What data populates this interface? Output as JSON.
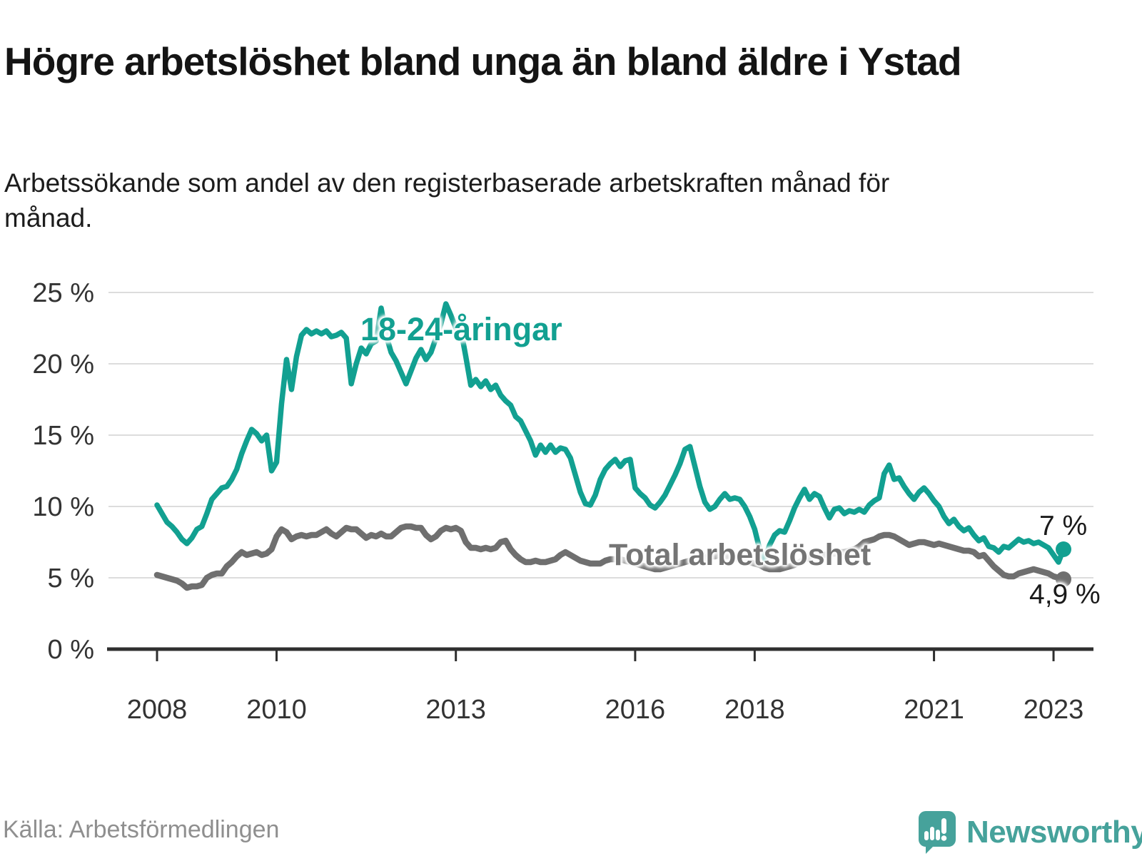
{
  "header": {
    "title": "Högre arbetslöshet bland unga än bland äldre i Ystad",
    "subtitle": "Arbetssökande som andel av den registerbaserade arbetskraften månad för månad."
  },
  "footer": {
    "source": "Källa: Arbetsförmedlingen",
    "brand": "Newsworthy"
  },
  "colors": {
    "young": "#12A091",
    "total": "#6F6F6F",
    "grid": "#DCDCDC",
    "axis": "#2F2F2F",
    "tick_text": "#333333",
    "end_label": "#1a1a1a",
    "brand_teal": "#46A29B"
  },
  "chart_data": {
    "type": "line",
    "title": "Högre arbetslöshet bland unga än bland äldre i Ystad",
    "subtitle": "Arbetssökande som andel av den registerbaserade arbetskraften månad för månad.",
    "unit": "%",
    "x_start": "2008-01",
    "x_end": "2023-03",
    "frequency": "monthly",
    "ylim": [
      0,
      25
    ],
    "grid": "horizontal",
    "legend_position": "inline-labels",
    "y_axis": {
      "ticks": [
        {
          "value": 25,
          "label": "25 %"
        },
        {
          "value": 20,
          "label": "20 %"
        },
        {
          "value": 15,
          "label": "15 %"
        },
        {
          "value": 10,
          "label": "10 %"
        },
        {
          "value": 5,
          "label": "5 %"
        },
        {
          "value": 0,
          "label": "0 %"
        }
      ]
    },
    "x_axis": {
      "ticks": [
        {
          "year": 2008,
          "label": "2008"
        },
        {
          "year": 2010,
          "label": "2010"
        },
        {
          "year": 2013,
          "label": "2013"
        },
        {
          "year": 2016,
          "label": "2016"
        },
        {
          "year": 2018,
          "label": "2018"
        },
        {
          "year": 2021,
          "label": "2021"
        },
        {
          "year": 2023,
          "label": "2023"
        }
      ]
    },
    "series": [
      {
        "name": "18-24-åringar",
        "color": "#12A091",
        "end_label": "7 %",
        "last_value": 7.0,
        "values": [
          10.1,
          9.5,
          8.9,
          8.6,
          8.2,
          7.7,
          7.4,
          7.8,
          8.4,
          8.6,
          9.5,
          10.5,
          10.9,
          11.3,
          11.4,
          11.9,
          12.6,
          13.7,
          14.6,
          15.4,
          15.1,
          14.6,
          15.0,
          12.5,
          13.1,
          17.2,
          20.3,
          18.2,
          20.5,
          22.0,
          22.4,
          22.1,
          22.3,
          22.1,
          22.3,
          21.9,
          22.0,
          22.2,
          21.8,
          18.6,
          20.0,
          21.1,
          20.7,
          21.4,
          21.6,
          23.9,
          22.0,
          20.8,
          20.2,
          19.4,
          18.6,
          19.5,
          20.4,
          21.0,
          20.3,
          20.8,
          21.8,
          22.8,
          24.2,
          23.4,
          22.5,
          22.4,
          20.5,
          18.5,
          18.9,
          18.4,
          18.8,
          18.2,
          18.5,
          17.8,
          17.4,
          17.1,
          16.3,
          16.0,
          15.3,
          14.6,
          13.6,
          14.3,
          13.8,
          14.3,
          13.8,
          14.1,
          14.0,
          13.4,
          12.2,
          11.0,
          10.2,
          10.1,
          10.8,
          11.9,
          12.6,
          13.0,
          13.3,
          12.8,
          13.2,
          13.3,
          11.3,
          10.9,
          10.6,
          10.1,
          9.9,
          10.3,
          10.8,
          11.5,
          12.2,
          13.0,
          14.0,
          14.2,
          12.8,
          11.4,
          10.3,
          9.8,
          10.0,
          10.5,
          10.9,
          10.5,
          10.6,
          10.5,
          10.0,
          9.3,
          8.4,
          7.0,
          6.3,
          7.3,
          8.0,
          8.3,
          8.2,
          9.0,
          9.9,
          10.6,
          11.2,
          10.5,
          10.9,
          10.7,
          9.9,
          9.2,
          9.8,
          9.9,
          9.5,
          9.7,
          9.6,
          9.8,
          9.6,
          10.1,
          10.4,
          10.6,
          12.3,
          12.9,
          11.9,
          12.0,
          11.4,
          10.9,
          10.5,
          11.0,
          11.3,
          10.9,
          10.4,
          10.0,
          9.3,
          8.8,
          9.1,
          8.6,
          8.3,
          8.5,
          8.0,
          7.6,
          7.8,
          7.2,
          7.1,
          6.8,
          7.2,
          7.1,
          7.4,
          7.7,
          7.5,
          7.6,
          7.4,
          7.5,
          7.3,
          7.1,
          6.6,
          6.1,
          7.0
        ]
      },
      {
        "name": "Total arbetslöshet",
        "color": "#6F6F6F",
        "end_label": "4,9 %",
        "last_value": 4.9,
        "values": [
          5.2,
          5.1,
          5.0,
          4.9,
          4.8,
          4.6,
          4.3,
          4.4,
          4.4,
          4.5,
          5.0,
          5.2,
          5.3,
          5.3,
          5.8,
          6.1,
          6.5,
          6.8,
          6.6,
          6.7,
          6.8,
          6.6,
          6.7,
          7.0,
          7.9,
          8.4,
          8.2,
          7.7,
          7.9,
          8.0,
          7.9,
          8.0,
          8.0,
          8.2,
          8.4,
          8.1,
          7.9,
          8.2,
          8.5,
          8.4,
          8.4,
          8.1,
          7.8,
          8.0,
          7.9,
          8.1,
          7.9,
          7.9,
          8.2,
          8.5,
          8.6,
          8.6,
          8.5,
          8.5,
          8.0,
          7.7,
          7.9,
          8.3,
          8.5,
          8.4,
          8.5,
          8.3,
          7.5,
          7.1,
          7.1,
          7.0,
          7.1,
          7.0,
          7.1,
          7.5,
          7.6,
          7.0,
          6.6,
          6.3,
          6.1,
          6.1,
          6.2,
          6.1,
          6.1,
          6.2,
          6.3,
          6.6,
          6.8,
          6.6,
          6.4,
          6.2,
          6.1,
          6.0,
          6.0,
          6.0,
          6.2,
          6.3,
          6.3,
          6.3,
          6.2,
          6.1,
          6.0,
          5.9,
          5.8,
          5.7,
          5.6,
          5.6,
          5.7,
          5.8,
          5.9,
          6.0,
          6.1,
          6.2,
          6.3,
          6.4,
          6.4,
          6.5,
          6.5,
          6.6,
          6.5,
          6.5,
          6.4,
          6.3,
          6.2,
          6.1,
          6.0,
          5.9,
          5.7,
          5.6,
          5.6,
          5.6,
          5.7,
          5.8,
          5.9,
          6.1,
          6.3,
          6.4,
          6.5,
          6.6,
          6.6,
          6.7,
          6.7,
          6.8,
          6.8,
          6.9,
          7.0,
          7.2,
          7.5,
          7.6,
          7.7,
          7.9,
          8.0,
          8.0,
          7.9,
          7.7,
          7.5,
          7.3,
          7.4,
          7.5,
          7.5,
          7.4,
          7.3,
          7.4,
          7.3,
          7.2,
          7.1,
          7.0,
          6.9,
          6.9,
          6.8,
          6.5,
          6.6,
          6.2,
          5.8,
          5.5,
          5.2,
          5.1,
          5.1,
          5.3,
          5.4,
          5.5,
          5.6,
          5.5,
          5.4,
          5.3,
          5.1,
          5.0,
          4.9
        ]
      }
    ]
  }
}
